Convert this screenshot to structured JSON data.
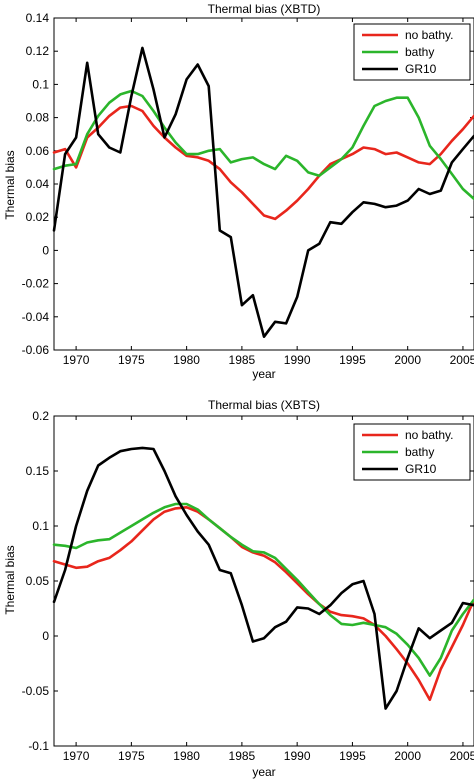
{
  "chart_data": [
    {
      "type": "line",
      "title": "Thermal bias (XBTD)",
      "xlabel": "year",
      "ylabel": "Thermal bias",
      "xlim": [
        1968,
        2006
      ],
      "ylim": [
        -0.06,
        0.14
      ],
      "xticks": [
        1970,
        1975,
        1980,
        1985,
        1990,
        1995,
        2000,
        2005
      ],
      "yticks": [
        -0.06,
        -0.04,
        -0.02,
        0,
        0.02,
        0.04,
        0.06,
        0.08,
        0.1,
        0.12,
        0.14
      ],
      "ytick_labels": [
        "-0.06",
        "-0.04",
        "-0.02",
        "0",
        "0.02",
        "0.04",
        "0.06",
        "0.08",
        "0.1",
        "0.12",
        "0.14"
      ],
      "grid": false,
      "legend_position": "top-right",
      "series": [
        {
          "name": "no bathy.",
          "color": "#e8261c",
          "x": [
            1968,
            1969,
            1970,
            1971,
            1972,
            1973,
            1974,
            1975,
            1976,
            1977,
            1978,
            1979,
            1980,
            1981,
            1982,
            1983,
            1984,
            1985,
            1986,
            1987,
            1988,
            1989,
            1990,
            1991,
            1992,
            1993,
            1994,
            1995,
            1996,
            1997,
            1998,
            1999,
            2000,
            2001,
            2002,
            2003,
            2004,
            2005,
            2006
          ],
          "y": [
            0.059,
            0.061,
            0.05,
            0.068,
            0.074,
            0.081,
            0.086,
            0.087,
            0.084,
            0.075,
            0.068,
            0.062,
            0.057,
            0.056,
            0.054,
            0.049,
            0.041,
            0.035,
            0.028,
            0.021,
            0.019,
            0.024,
            0.03,
            0.037,
            0.045,
            0.052,
            0.055,
            0.058,
            0.062,
            0.061,
            0.058,
            0.059,
            0.056,
            0.053,
            0.052,
            0.058,
            0.066,
            0.073,
            0.081
          ]
        },
        {
          "name": "bathy",
          "color": "#2bb52b",
          "x": [
            1968,
            1969,
            1970,
            1971,
            1972,
            1973,
            1974,
            1975,
            1976,
            1977,
            1978,
            1979,
            1980,
            1981,
            1982,
            1983,
            1984,
            1985,
            1986,
            1987,
            1988,
            1989,
            1990,
            1991,
            1992,
            1993,
            1994,
            1995,
            1996,
            1997,
            1998,
            1999,
            2000,
            2001,
            2002,
            2003,
            2004,
            2005,
            2006
          ],
          "y": [
            0.049,
            0.051,
            0.052,
            0.07,
            0.081,
            0.089,
            0.094,
            0.096,
            0.093,
            0.084,
            0.074,
            0.065,
            0.058,
            0.058,
            0.06,
            0.061,
            0.053,
            0.055,
            0.056,
            0.052,
            0.049,
            0.057,
            0.054,
            0.047,
            0.045,
            0.05,
            0.055,
            0.062,
            0.075,
            0.087,
            0.09,
            0.092,
            0.092,
            0.08,
            0.063,
            0.055,
            0.046,
            0.037,
            0.031
          ]
        },
        {
          "name": "GR10",
          "color": "#000000",
          "x": [
            1968,
            1969,
            1970,
            1971,
            1972,
            1973,
            1974,
            1975,
            1976,
            1977,
            1978,
            1979,
            1980,
            1981,
            1982,
            1983,
            1984,
            1985,
            1986,
            1987,
            1988,
            1989,
            1990,
            1991,
            1992,
            1993,
            1994,
            1995,
            1996,
            1997,
            1998,
            1999,
            2000,
            2001,
            2002,
            2003,
            2004,
            2005,
            2006
          ],
          "y": [
            0.012,
            0.058,
            0.068,
            0.113,
            0.07,
            0.062,
            0.059,
            0.093,
            0.122,
            0.097,
            0.068,
            0.082,
            0.103,
            0.112,
            0.099,
            0.012,
            0.008,
            -0.033,
            -0.027,
            -0.052,
            -0.043,
            -0.044,
            -0.028,
            0.0,
            0.004,
            0.017,
            0.016,
            0.023,
            0.029,
            0.028,
            0.026,
            0.027,
            0.03,
            0.037,
            0.034,
            0.036,
            0.053,
            0.061,
            0.069
          ]
        }
      ]
    },
    {
      "type": "line",
      "title": "Thermal bias (XBTS)",
      "xlabel": "year",
      "ylabel": "Thermal bias",
      "xlim": [
        1968,
        2006
      ],
      "ylim": [
        -0.1,
        0.2
      ],
      "xticks": [
        1970,
        1975,
        1980,
        1985,
        1990,
        1995,
        2000,
        2005
      ],
      "yticks": [
        -0.1,
        -0.05,
        0,
        0.05,
        0.1,
        0.15,
        0.2
      ],
      "ytick_labels": [
        "-0.1",
        "-0.05",
        "0",
        "0.05",
        "0.1",
        "0.15",
        "0.2"
      ],
      "grid": false,
      "legend_position": "top-right",
      "series": [
        {
          "name": "no bathy.",
          "color": "#e8261c",
          "x": [
            1968,
            1969,
            1970,
            1971,
            1972,
            1973,
            1974,
            1975,
            1976,
            1977,
            1978,
            1979,
            1980,
            1981,
            1982,
            1983,
            1984,
            1985,
            1986,
            1987,
            1988,
            1989,
            1990,
            1991,
            1992,
            1993,
            1994,
            1995,
            1996,
            1997,
            1998,
            1999,
            2000,
            2001,
            2002,
            2003,
            2004,
            2005,
            2006
          ],
          "y": [
            0.068,
            0.065,
            0.062,
            0.063,
            0.068,
            0.071,
            0.078,
            0.086,
            0.096,
            0.106,
            0.113,
            0.116,
            0.117,
            0.113,
            0.106,
            0.098,
            0.09,
            0.081,
            0.076,
            0.073,
            0.067,
            0.058,
            0.048,
            0.038,
            0.029,
            0.022,
            0.019,
            0.018,
            0.016,
            0.01,
            0.0,
            -0.012,
            -0.025,
            -0.04,
            -0.058,
            -0.03,
            -0.01,
            0.01,
            0.033
          ]
        },
        {
          "name": "bathy",
          "color": "#2bb52b",
          "x": [
            1968,
            1969,
            1970,
            1971,
            1972,
            1973,
            1974,
            1975,
            1976,
            1977,
            1978,
            1979,
            1980,
            1981,
            1982,
            1983,
            1984,
            1985,
            1986,
            1987,
            1988,
            1989,
            1990,
            1991,
            1992,
            1993,
            1994,
            1995,
            1996,
            1997,
            1998,
            1999,
            2000,
            2001,
            2002,
            2003,
            2004,
            2005,
            2006
          ],
          "y": [
            0.083,
            0.082,
            0.08,
            0.085,
            0.087,
            0.088,
            0.094,
            0.1,
            0.106,
            0.112,
            0.117,
            0.12,
            0.12,
            0.115,
            0.106,
            0.098,
            0.09,
            0.083,
            0.077,
            0.076,
            0.071,
            0.061,
            0.051,
            0.04,
            0.029,
            0.019,
            0.011,
            0.01,
            0.012,
            0.01,
            0.008,
            0.002,
            -0.008,
            -0.02,
            -0.036,
            -0.02,
            0.005,
            0.02,
            0.033
          ]
        },
        {
          "name": "GR10",
          "color": "#000000",
          "x": [
            1968,
            1969,
            1970,
            1971,
            1972,
            1973,
            1974,
            1975,
            1976,
            1977,
            1978,
            1979,
            1980,
            1981,
            1982,
            1983,
            1984,
            1985,
            1986,
            1987,
            1988,
            1989,
            1990,
            1991,
            1992,
            1993,
            1994,
            1995,
            1996,
            1997,
            1998,
            1999,
            2000,
            2001,
            2002,
            2003,
            2004,
            2005,
            2006
          ],
          "y": [
            0.031,
            0.06,
            0.1,
            0.132,
            0.155,
            0.162,
            0.168,
            0.17,
            0.171,
            0.17,
            0.15,
            0.127,
            0.11,
            0.095,
            0.083,
            0.06,
            0.057,
            0.028,
            -0.005,
            -0.002,
            0.008,
            0.013,
            0.026,
            0.025,
            0.02,
            0.028,
            0.039,
            0.047,
            0.05,
            0.02,
            -0.066,
            -0.05,
            -0.02,
            0.007,
            -0.002,
            0.005,
            0.012,
            0.03,
            0.028
          ]
        }
      ]
    }
  ]
}
